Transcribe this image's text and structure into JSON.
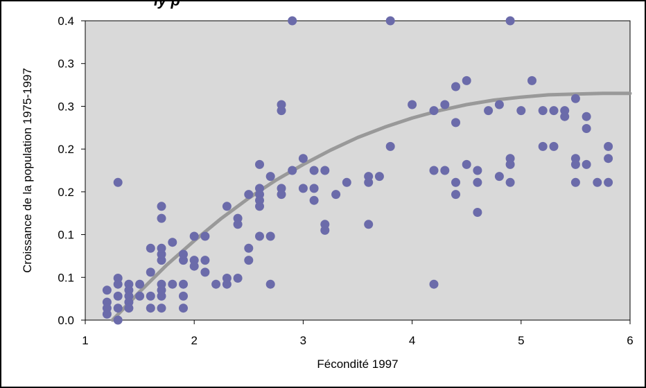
{
  "chart_data": {
    "type": "scatter",
    "title": "",
    "title_fragment": "ly p",
    "xlabel": "Fécondité 1997",
    "ylabel": "Croissance de la population 1975-1997",
    "xlim": [
      1,
      6
    ],
    "ylim": [
      0,
      0.4
    ],
    "x_ticks": [
      "1",
      "2",
      "3",
      "4",
      "5",
      "6"
    ],
    "y_ticks": [
      "0.0",
      "0.1",
      "0.1",
      "0.2",
      "0.2",
      "0.3",
      "0.3",
      "0.4"
    ],
    "grid": false,
    "legend": "none",
    "plot_background": "#d9d9d9",
    "point_color": "#6b6baa",
    "trend_color": "#999999",
    "trend_curve": {
      "x": [
        1.25,
        1.5,
        1.75,
        2.0,
        2.25,
        2.5,
        2.75,
        3.0,
        3.25,
        3.5,
        3.75,
        4.0,
        4.25,
        4.5,
        4.75,
        5.0,
        5.25,
        5.5,
        5.75,
        6.0
      ],
      "y": [
        0.0,
        0.038,
        0.074,
        0.106,
        0.136,
        0.163,
        0.187,
        0.208,
        0.227,
        0.244,
        0.258,
        0.27,
        0.28,
        0.288,
        0.294,
        0.298,
        0.301,
        0.302,
        0.303,
        0.303
      ]
    },
    "series": [
      {
        "points": [
          [
            1.2,
            0.04
          ],
          [
            1.2,
            0.024
          ],
          [
            1.2,
            0.016
          ],
          [
            1.2,
            0.008
          ],
          [
            1.3,
            0.056
          ],
          [
            1.3,
            0.048
          ],
          [
            1.3,
            0.032
          ],
          [
            1.3,
            0.016
          ],
          [
            1.3,
            0.0
          ],
          [
            1.3,
            0.184
          ],
          [
            1.4,
            0.048
          ],
          [
            1.4,
            0.04
          ],
          [
            1.4,
            0.032
          ],
          [
            1.4,
            0.024
          ],
          [
            1.4,
            0.016
          ],
          [
            1.5,
            0.048
          ],
          [
            1.5,
            0.032
          ],
          [
            1.6,
            0.016
          ],
          [
            1.6,
            0.032
          ],
          [
            1.6,
            0.064
          ],
          [
            1.6,
            0.096
          ],
          [
            1.7,
            0.048
          ],
          [
            1.7,
            0.04
          ],
          [
            1.7,
            0.032
          ],
          [
            1.7,
            0.016
          ],
          [
            1.7,
            0.08
          ],
          [
            1.7,
            0.088
          ],
          [
            1.7,
            0.096
          ],
          [
            1.7,
            0.136
          ],
          [
            1.7,
            0.152
          ],
          [
            1.8,
            0.048
          ],
          [
            1.8,
            0.104
          ],
          [
            1.9,
            0.048
          ],
          [
            1.9,
            0.032
          ],
          [
            1.9,
            0.016
          ],
          [
            1.9,
            0.08
          ],
          [
            1.9,
            0.088
          ],
          [
            2.0,
            0.08
          ],
          [
            2.0,
            0.072
          ],
          [
            2.0,
            0.112
          ],
          [
            2.1,
            0.112
          ],
          [
            2.1,
            0.08
          ],
          [
            2.1,
            0.064
          ],
          [
            2.2,
            0.048
          ],
          [
            2.3,
            0.048
          ],
          [
            2.3,
            0.056
          ],
          [
            2.3,
            0.152
          ],
          [
            2.4,
            0.136
          ],
          [
            2.4,
            0.128
          ],
          [
            2.4,
            0.056
          ],
          [
            2.5,
            0.168
          ],
          [
            2.5,
            0.096
          ],
          [
            2.5,
            0.08
          ],
          [
            2.6,
            0.208
          ],
          [
            2.6,
            0.176
          ],
          [
            2.6,
            0.168
          ],
          [
            2.6,
            0.16
          ],
          [
            2.6,
            0.152
          ],
          [
            2.6,
            0.112
          ],
          [
            2.7,
            0.192
          ],
          [
            2.7,
            0.112
          ],
          [
            2.7,
            0.048
          ],
          [
            2.8,
            0.288
          ],
          [
            2.8,
            0.28
          ],
          [
            2.8,
            0.176
          ],
          [
            2.8,
            0.168
          ],
          [
            2.9,
            0.4
          ],
          [
            2.9,
            0.2
          ],
          [
            3.0,
            0.216
          ],
          [
            3.0,
            0.176
          ],
          [
            3.1,
            0.2
          ],
          [
            3.1,
            0.176
          ],
          [
            3.1,
            0.16
          ],
          [
            3.2,
            0.2
          ],
          [
            3.2,
            0.128
          ],
          [
            3.2,
            0.12
          ],
          [
            3.3,
            0.168
          ],
          [
            3.4,
            0.184
          ],
          [
            3.6,
            0.192
          ],
          [
            3.6,
            0.184
          ],
          [
            3.6,
            0.128
          ],
          [
            3.7,
            0.192
          ],
          [
            3.8,
            0.4
          ],
          [
            3.8,
            0.232
          ],
          [
            4.0,
            0.288
          ],
          [
            4.2,
            0.28
          ],
          [
            4.2,
            0.2
          ],
          [
            4.2,
            0.048
          ],
          [
            4.3,
            0.288
          ],
          [
            4.3,
            0.2
          ],
          [
            4.4,
            0.312
          ],
          [
            4.4,
            0.264
          ],
          [
            4.4,
            0.184
          ],
          [
            4.4,
            0.168
          ],
          [
            4.5,
            0.32
          ],
          [
            4.5,
            0.208
          ],
          [
            4.6,
            0.2
          ],
          [
            4.6,
            0.184
          ],
          [
            4.6,
            0.144
          ],
          [
            4.7,
            0.28
          ],
          [
            4.8,
            0.288
          ],
          [
            4.8,
            0.192
          ],
          [
            4.9,
            0.4
          ],
          [
            4.9,
            0.216
          ],
          [
            4.9,
            0.208
          ],
          [
            4.9,
            0.184
          ],
          [
            5.0,
            0.28
          ],
          [
            5.1,
            0.32
          ],
          [
            5.2,
            0.28
          ],
          [
            5.2,
            0.232
          ],
          [
            5.3,
            0.28
          ],
          [
            5.3,
            0.232
          ],
          [
            5.4,
            0.28
          ],
          [
            5.4,
            0.272
          ],
          [
            5.5,
            0.296
          ],
          [
            5.5,
            0.216
          ],
          [
            5.5,
            0.208
          ],
          [
            5.5,
            0.184
          ],
          [
            5.6,
            0.272
          ],
          [
            5.6,
            0.256
          ],
          [
            5.6,
            0.208
          ],
          [
            5.7,
            0.184
          ],
          [
            5.8,
            0.232
          ],
          [
            5.8,
            0.216
          ],
          [
            5.8,
            0.184
          ]
        ]
      }
    ]
  }
}
